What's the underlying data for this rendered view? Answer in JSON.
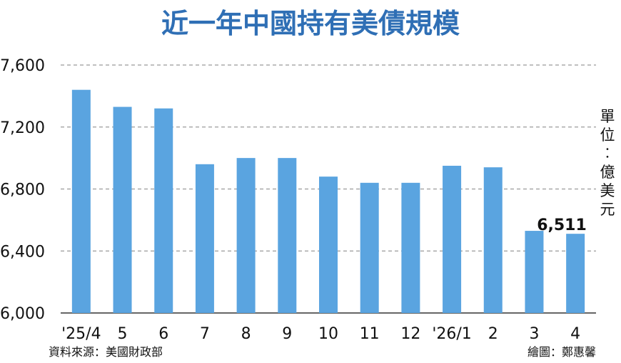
{
  "chart_data": {
    "type": "bar",
    "title": "近一年中國持有美債規模",
    "unit_label": "單位：億美元",
    "categories": [
      "'25/4",
      "5",
      "6",
      "7",
      "8",
      "9",
      "10",
      "11",
      "12",
      "'26/1",
      "2",
      "3",
      "4"
    ],
    "values": [
      7440,
      7330,
      7320,
      6960,
      7000,
      7000,
      6880,
      6840,
      6840,
      6950,
      6940,
      6530,
      6511
    ],
    "annotation": "6,511",
    "ylim": [
      6000,
      7600
    ],
    "yticks": [
      "6,000",
      "6,400",
      "6,800",
      "7,200",
      "7,600"
    ],
    "grid": true,
    "legend": "none"
  },
  "source": "資料來源：美國財政部",
  "credit": "繪圖：鄭惠馨",
  "colors": {
    "bar": "#5aa4e0",
    "title": "#2f6fb5",
    "grid": "#9b9b9b",
    "text": "#111111"
  }
}
